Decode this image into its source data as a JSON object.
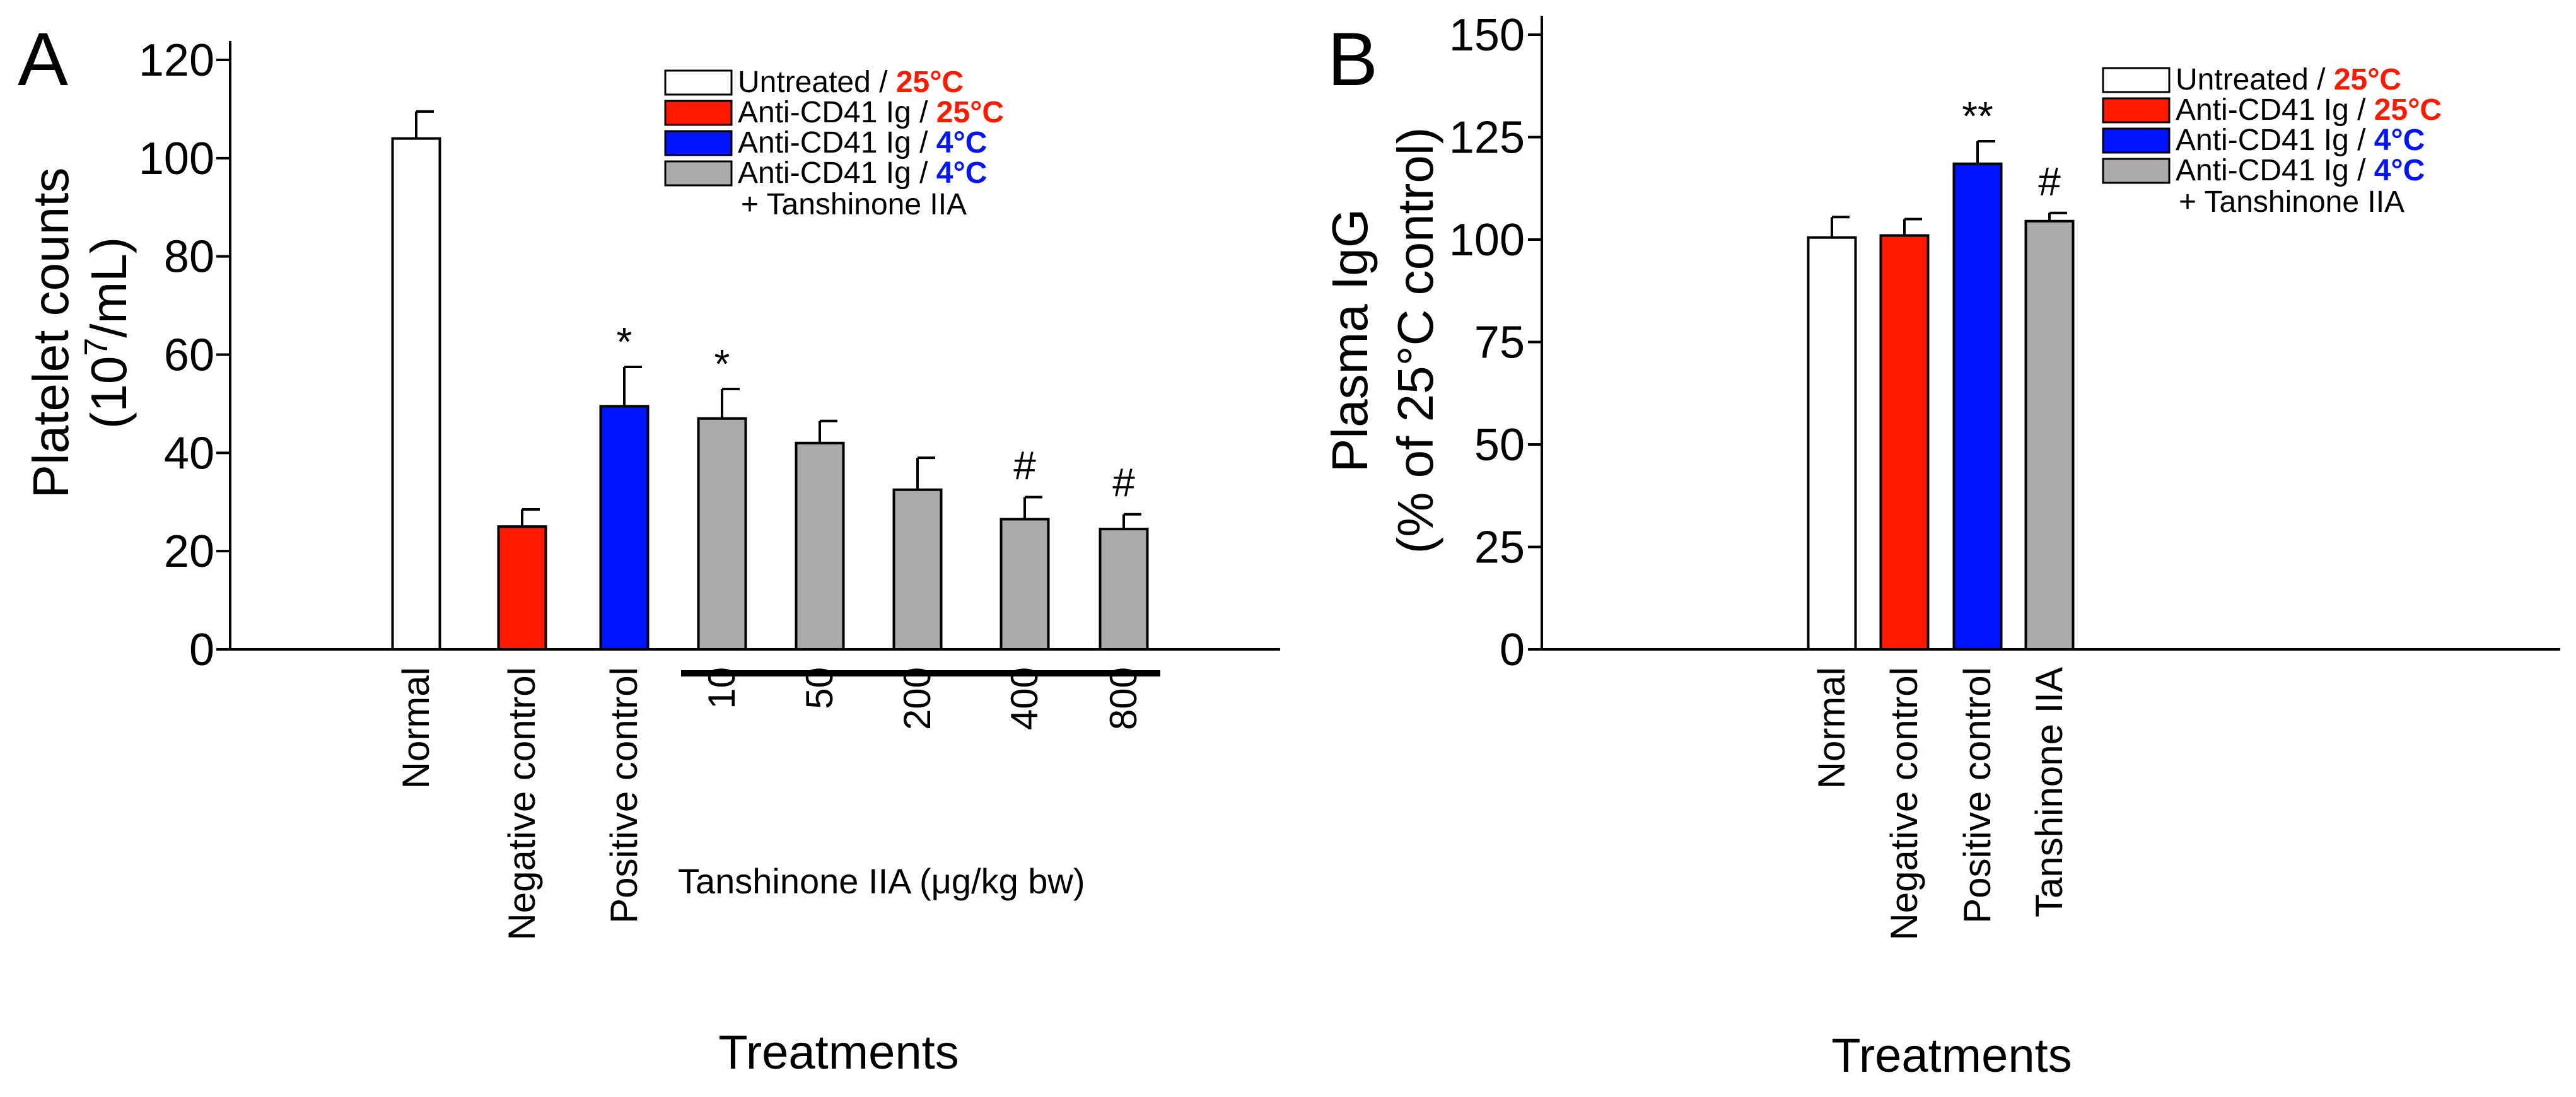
{
  "chart_data": [
    {
      "panel": "A",
      "type": "bar",
      "ylabel_line1": "Platelet counts",
      "ylabel_line2_pre": "(10",
      "ylabel_line2_sup": "7",
      "ylabel_line2_post": "/mL)",
      "xlabel": "Treatments",
      "ylim": [
        0,
        120
      ],
      "yticks": [
        0,
        20,
        40,
        60,
        80,
        100,
        120
      ],
      "categories": [
        "Normal",
        "Negative control",
        "Positive control",
        "10",
        "50",
        "200",
        "400",
        "800"
      ],
      "values": [
        104,
        25,
        49.5,
        47,
        42,
        32.5,
        26.5,
        24.5
      ],
      "errors": [
        5.5,
        3.5,
        8,
        6,
        4.5,
        6.5,
        4.5,
        3
      ],
      "bar_colors": [
        "#ffffff",
        "#ff1a00",
        "#0014ff",
        "#aaaaaa",
        "#aaaaaa",
        "#aaaaaa",
        "#aaaaaa",
        "#aaaaaa"
      ],
      "annotations": [
        "",
        "",
        "*",
        "*",
        "",
        "",
        "#",
        "#"
      ],
      "group_label": "Tanshinone IIA (μg/kg bw)",
      "legend": [
        {
          "label": "Untreated / ",
          "highlight": "25°C",
          "swatch": "#ffffff",
          "highlight_color": "#ff1a00"
        },
        {
          "label": "Anti-CD41 Ig / ",
          "highlight": "25°C",
          "swatch": "#ff1a00",
          "highlight_color": "#ff1a00"
        },
        {
          "label": "Anti-CD41 Ig / ",
          "highlight": "4°C",
          "swatch": "#0014ff",
          "highlight_color": "#0014ff"
        },
        {
          "label": "Anti-CD41 Ig / ",
          "highlight": "4°C",
          "swatch": "#aaaaaa",
          "highlight_color": "#0014ff"
        }
      ],
      "legend_extra": "+ Tanshinone IIA"
    },
    {
      "panel": "B",
      "type": "bar",
      "ylabel_line1": "Plasma IgG",
      "ylabel_line2": "(% of 25°C control)",
      "xlabel": "Treatments",
      "ylim": [
        0,
        150
      ],
      "yticks": [
        0,
        25,
        50,
        75,
        100,
        125,
        150
      ],
      "categories": [
        "Normal",
        "Negative control",
        "Positive control",
        "Tanshinone IIA"
      ],
      "values": [
        100.5,
        101,
        118.5,
        104.5
      ],
      "errors": [
        5,
        4,
        5.5,
        2
      ],
      "bar_colors": [
        "#ffffff",
        "#ff1a00",
        "#0014ff",
        "#aaaaaa"
      ],
      "annotations": [
        "",
        "",
        "**",
        "#"
      ],
      "legend": [
        {
          "label": "Untreated / ",
          "highlight": "25°C",
          "swatch": "#ffffff",
          "highlight_color": "#ff1a00"
        },
        {
          "label": "Anti-CD41 Ig / ",
          "highlight": "25°C",
          "swatch": "#ff1a00",
          "highlight_color": "#ff1a00"
        },
        {
          "label": "Anti-CD41 Ig / ",
          "highlight": "4°C",
          "swatch": "#0014ff",
          "highlight_color": "#0014ff"
        },
        {
          "label": "Anti-CD41 Ig / ",
          "highlight": "4°C",
          "swatch": "#aaaaaa",
          "highlight_color": "#0014ff"
        }
      ],
      "legend_extra": "+ Tanshinone IIA"
    }
  ]
}
